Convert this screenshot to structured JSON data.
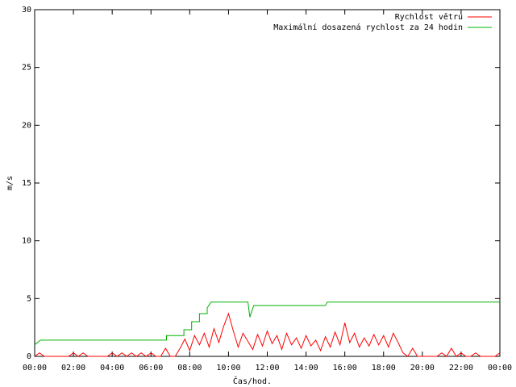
{
  "chart_data": {
    "type": "line",
    "xlabel": "Čas/hod.",
    "ylabel": "m/s",
    "xlim": [
      0,
      24
    ],
    "ylim": [
      0,
      30
    ],
    "xticks": [
      {
        "value": 0,
        "label": "00:00"
      },
      {
        "value": 2,
        "label": "02:00"
      },
      {
        "value": 4,
        "label": "04:00"
      },
      {
        "value": 6,
        "label": "06:00"
      },
      {
        "value": 8,
        "label": "08:00"
      },
      {
        "value": 10,
        "label": "10:00"
      },
      {
        "value": 12,
        "label": "12:00"
      },
      {
        "value": 14,
        "label": "14:00"
      },
      {
        "value": 16,
        "label": "16:00"
      },
      {
        "value": 18,
        "label": "18:00"
      },
      {
        "value": 20,
        "label": "20:00"
      },
      {
        "value": 22,
        "label": "22:00"
      },
      {
        "value": 24,
        "label": "00:00"
      }
    ],
    "yticks": [
      0,
      5,
      10,
      15,
      20,
      25,
      30
    ],
    "legend": "upper right",
    "series": [
      {
        "name": "Rychlost větru",
        "color": "#ff0000",
        "x": [
          0,
          0.25,
          0.5,
          0.75,
          1,
          1.25,
          1.5,
          1.75,
          2,
          2.25,
          2.5,
          2.75,
          3,
          3.25,
          3.5,
          3.75,
          4,
          4.25,
          4.5,
          4.75,
          5,
          5.25,
          5.5,
          5.75,
          6,
          6.25,
          6.5,
          6.75,
          7,
          7.25,
          7.5,
          7.75,
          8,
          8.25,
          8.5,
          8.75,
          9,
          9.25,
          9.5,
          9.75,
          10,
          10.25,
          10.5,
          10.75,
          11,
          11.25,
          11.5,
          11.75,
          12,
          12.25,
          12.5,
          12.75,
          13,
          13.25,
          13.5,
          13.75,
          14,
          14.25,
          14.5,
          14.75,
          15,
          15.25,
          15.5,
          15.75,
          16,
          16.25,
          16.5,
          16.75,
          17,
          17.25,
          17.5,
          17.75,
          18,
          18.25,
          18.5,
          18.75,
          19,
          19.25,
          19.5,
          19.75,
          20,
          20.25,
          20.5,
          20.75,
          21,
          21.25,
          21.5,
          21.75,
          22,
          22.25,
          22.5,
          22.75,
          23,
          23.25,
          23.5,
          23.75,
          24
        ],
        "values": [
          0,
          0.3,
          0,
          0,
          0,
          0,
          0,
          0,
          0.3,
          0,
          0.3,
          0,
          0,
          0,
          0,
          0,
          0.3,
          0,
          0.3,
          0,
          0.3,
          0,
          0.3,
          0,
          0.3,
          0,
          0,
          0.7,
          0,
          0,
          0.7,
          1.5,
          0.5,
          1.8,
          1.0,
          2.0,
          0.8,
          2.4,
          1.2,
          2.6,
          3.7,
          2.2,
          0.8,
          2.0,
          1.3,
          0.6,
          1.9,
          0.9,
          2.2,
          1.1,
          1.8,
          0.6,
          2.0,
          1.0,
          1.6,
          0.7,
          1.8,
          0.9,
          1.4,
          0.5,
          1.7,
          0.8,
          2.1,
          1.0,
          2.9,
          1.2,
          2.0,
          0.8,
          1.6,
          0.9,
          1.9,
          1.0,
          1.8,
          0.8,
          2.0,
          1.2,
          0.3,
          0,
          0.7,
          0,
          0,
          0,
          0,
          0,
          0.3,
          0,
          0.7,
          0,
          0.3,
          0,
          0,
          0.3,
          0,
          0,
          0,
          0,
          0.3
        ]
      },
      {
        "name": "Maximální dosazená rychlost za 24 hodin",
        "color": "#00b000",
        "x": [
          0,
          0.3,
          6.8,
          6.8,
          7.7,
          7.7,
          8.1,
          8.1,
          8.5,
          8.5,
          8.9,
          8.9,
          9.1,
          11.0,
          11.1,
          11.3,
          15.0,
          15.1,
          24
        ],
        "values": [
          1.0,
          1.4,
          1.4,
          1.8,
          1.8,
          2.3,
          2.3,
          3.0,
          3.0,
          3.7,
          3.7,
          4.2,
          4.7,
          4.7,
          3.4,
          4.4,
          4.4,
          4.7,
          4.7
        ]
      }
    ]
  }
}
